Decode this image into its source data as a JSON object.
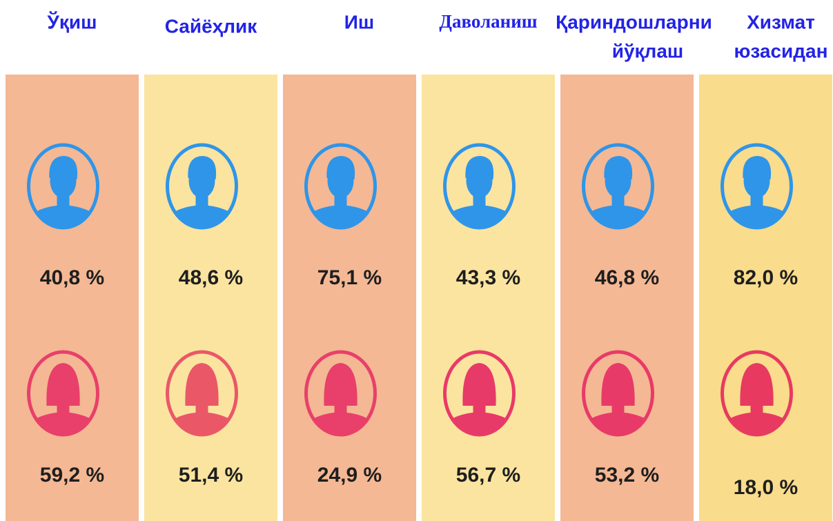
{
  "columns": [
    {
      "title": [
        "Ўқиш"
      ],
      "male": "40,8 %",
      "female": "59,2 %"
    },
    {
      "title": [
        "Сайёҳлик"
      ],
      "male": "48,6 %",
      "female": "51,4 %"
    },
    {
      "title": [
        "Иш"
      ],
      "male": "75,1 %",
      "female": "24,9 %"
    },
    {
      "title": [
        "Даволаниш"
      ],
      "male": "43,3 %",
      "female": "56,7 %"
    },
    {
      "title": [
        "Қариндошларни",
        "йўқлаш"
      ],
      "male": "46,8 %",
      "female": "53,2 %"
    },
    {
      "title": [
        "Хизмат",
        "юзасидан"
      ],
      "male": "82,0 %",
      "female": "18,0 %"
    }
  ]
}
